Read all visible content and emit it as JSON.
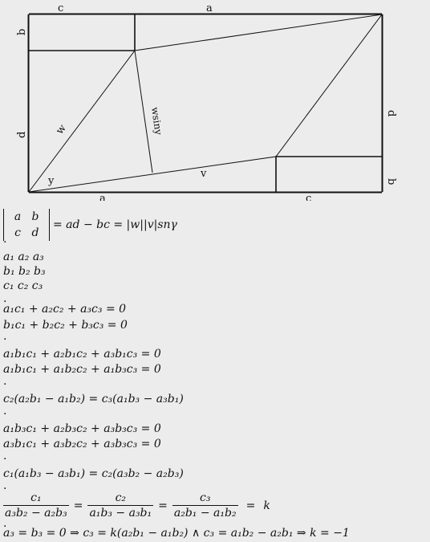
{
  "figure": {
    "labels": {
      "top_c": "c",
      "top_a": "a",
      "left_b": "b",
      "left_d": "d",
      "right_d": "d",
      "right_b": "b",
      "bottom_a": "a",
      "bottom_c": "c",
      "w": "w",
      "v": "v",
      "gamma": "y",
      "height": "wsiny"
    }
  },
  "determinant": {
    "cells": [
      "a",
      "b",
      "c",
      "d"
    ],
    "rhs": "= ad − bc = |w||v|snγ"
  },
  "lines": {
    "l1": "a₁ a₂ a₃",
    "l2": "b₁ b₂ b₃",
    "l3": "c₁ c₂ c₃",
    "l4": "a₁c₁ + a₂c₂ + a₃c₃ = 0",
    "l5": "b₁c₁ + b₂c₂ + b₃c₃ = 0",
    "l6": "a₁b₁c₁ + a₂b₁c₂ + a₃b₁c₃ = 0",
    "l7": "a₁b₁c₁ + a₁b₂c₂ + a₁b₃c₃ = 0",
    "l8": "c₂(a₂b₁ − a₁b₂) = c₃(a₁b₃ − a₃b₁)",
    "l9": "a₁b₃c₁ + a₂b₃c₂ + a₃b₃c₃ = 0",
    "l10": "a₃b₁c₁ + a₃b₂c₂ + a₃b₃c₃ = 0",
    "l11": "c₁(a₁b₃ − a₃b₁) = c₂(a₃b₂ − a₂b₃)",
    "l12": "a₃ = b₃ = 0 ⇒ c₃ = k(a₂b₁ − a₁b₂) ∧ c₃ = a₁b₂ − a₂b₁ ⇒ k = −1"
  },
  "fraction_line": {
    "num1": "c₁",
    "den1": "a₃b₂ − a₂b₃",
    "num2": "c₂",
    "den2": "a₁b₃ − a₃b₁",
    "num3": "c₃",
    "den3": "a₂b₁ − a₁b₂",
    "eq": "=",
    "k": "k"
  },
  "dot": "."
}
